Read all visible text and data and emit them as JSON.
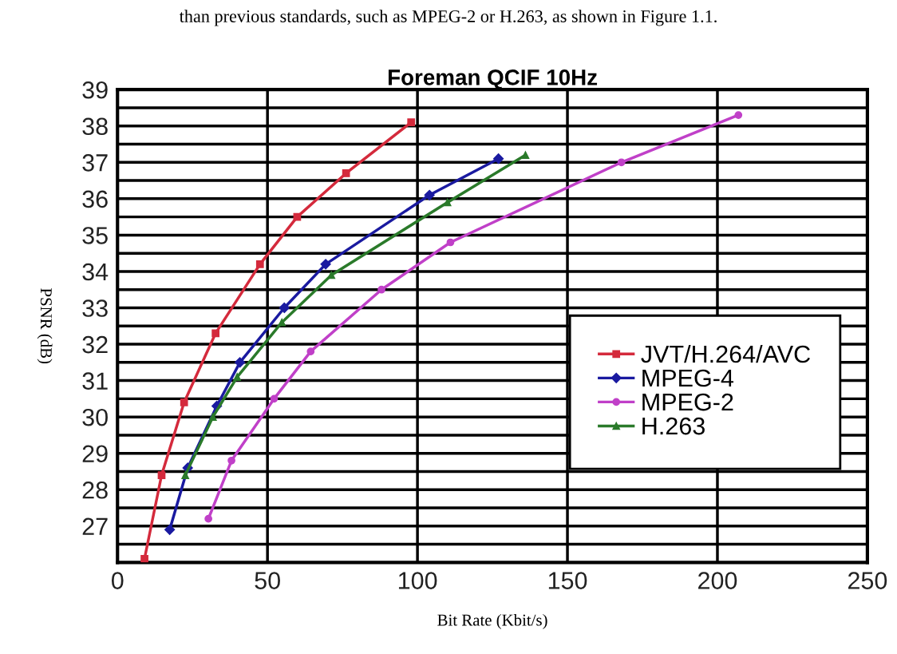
{
  "chart_data": {
    "type": "line",
    "title": "Foreman QCIF 10Hz",
    "xlabel": "Bit Rate (Kbit/s)",
    "ylabel": "PSNR (dB)",
    "annotations": [
      "than previous standards, such as MPEG-2 or H.263, as shown in Figure 1.1."
    ],
    "xlim": [
      0,
      250
    ],
    "xticks": [
      0,
      50,
      100,
      150,
      200,
      250
    ],
    "ylim": [
      26,
      39
    ],
    "yticks": [
      {
        "value": 26.5,
        "label": null
      },
      27,
      {
        "value": 27.5,
        "label": null
      },
      28,
      {
        "value": 28.5,
        "label": null
      },
      29,
      {
        "value": 29.5,
        "label": null
      },
      30,
      {
        "value": 30.5,
        "label": null
      },
      31,
      {
        "value": 31.5,
        "label": null
      },
      32,
      {
        "value": 32.5,
        "label": null
      },
      33,
      {
        "value": 33.5,
        "label": null
      },
      34,
      {
        "value": 34.5,
        "label": null
      },
      35,
      {
        "value": 35.5,
        "label": null
      },
      36,
      {
        "value": 36.5,
        "label": null
      },
      37,
      {
        "value": 37.5,
        "label": null
      },
      38,
      {
        "value": 38.5,
        "label": null
      },
      39
    ],
    "grid": true,
    "legend": "right",
    "line_style": "solid",
    "series": [
      {
        "name": "JVT/H.264/AVC",
        "color": "#d42a3c",
        "marker": "square",
        "x": [
          9,
          14.7,
          22.2,
          32.7,
          47.5,
          59.9,
          76.2,
          97.9
        ],
        "values": [
          26.1,
          28.4,
          30.4,
          32.3,
          34.2,
          35.5,
          36.7,
          38.1
        ]
      },
      {
        "name": "MPEG-4",
        "color": "#1a1aa0",
        "marker": "diamond",
        "x": [
          17.4,
          23.4,
          33.1,
          40.8,
          55.6,
          69.4,
          104,
          127
        ],
        "values": [
          26.9,
          28.6,
          30.3,
          31.5,
          33.0,
          34.2,
          36.1,
          37.1
        ]
      },
      {
        "name": "MPEG-2",
        "color": "#c040c8",
        "marker": "circle",
        "x": [
          30.3,
          38,
          52.2,
          64.4,
          88,
          111,
          168,
          207
        ],
        "values": [
          27.2,
          28.8,
          30.5,
          31.8,
          33.5,
          34.8,
          37.0,
          38.3
        ]
      },
      {
        "name": "H.263",
        "color": "#2a7a2a",
        "marker": "triangle",
        "x": [
          22.6,
          31.8,
          39.9,
          54.8,
          71.3,
          110,
          136
        ],
        "values": [
          28.4,
          30.0,
          31.1,
          32.6,
          33.9,
          35.9,
          37.2
        ]
      }
    ]
  }
}
